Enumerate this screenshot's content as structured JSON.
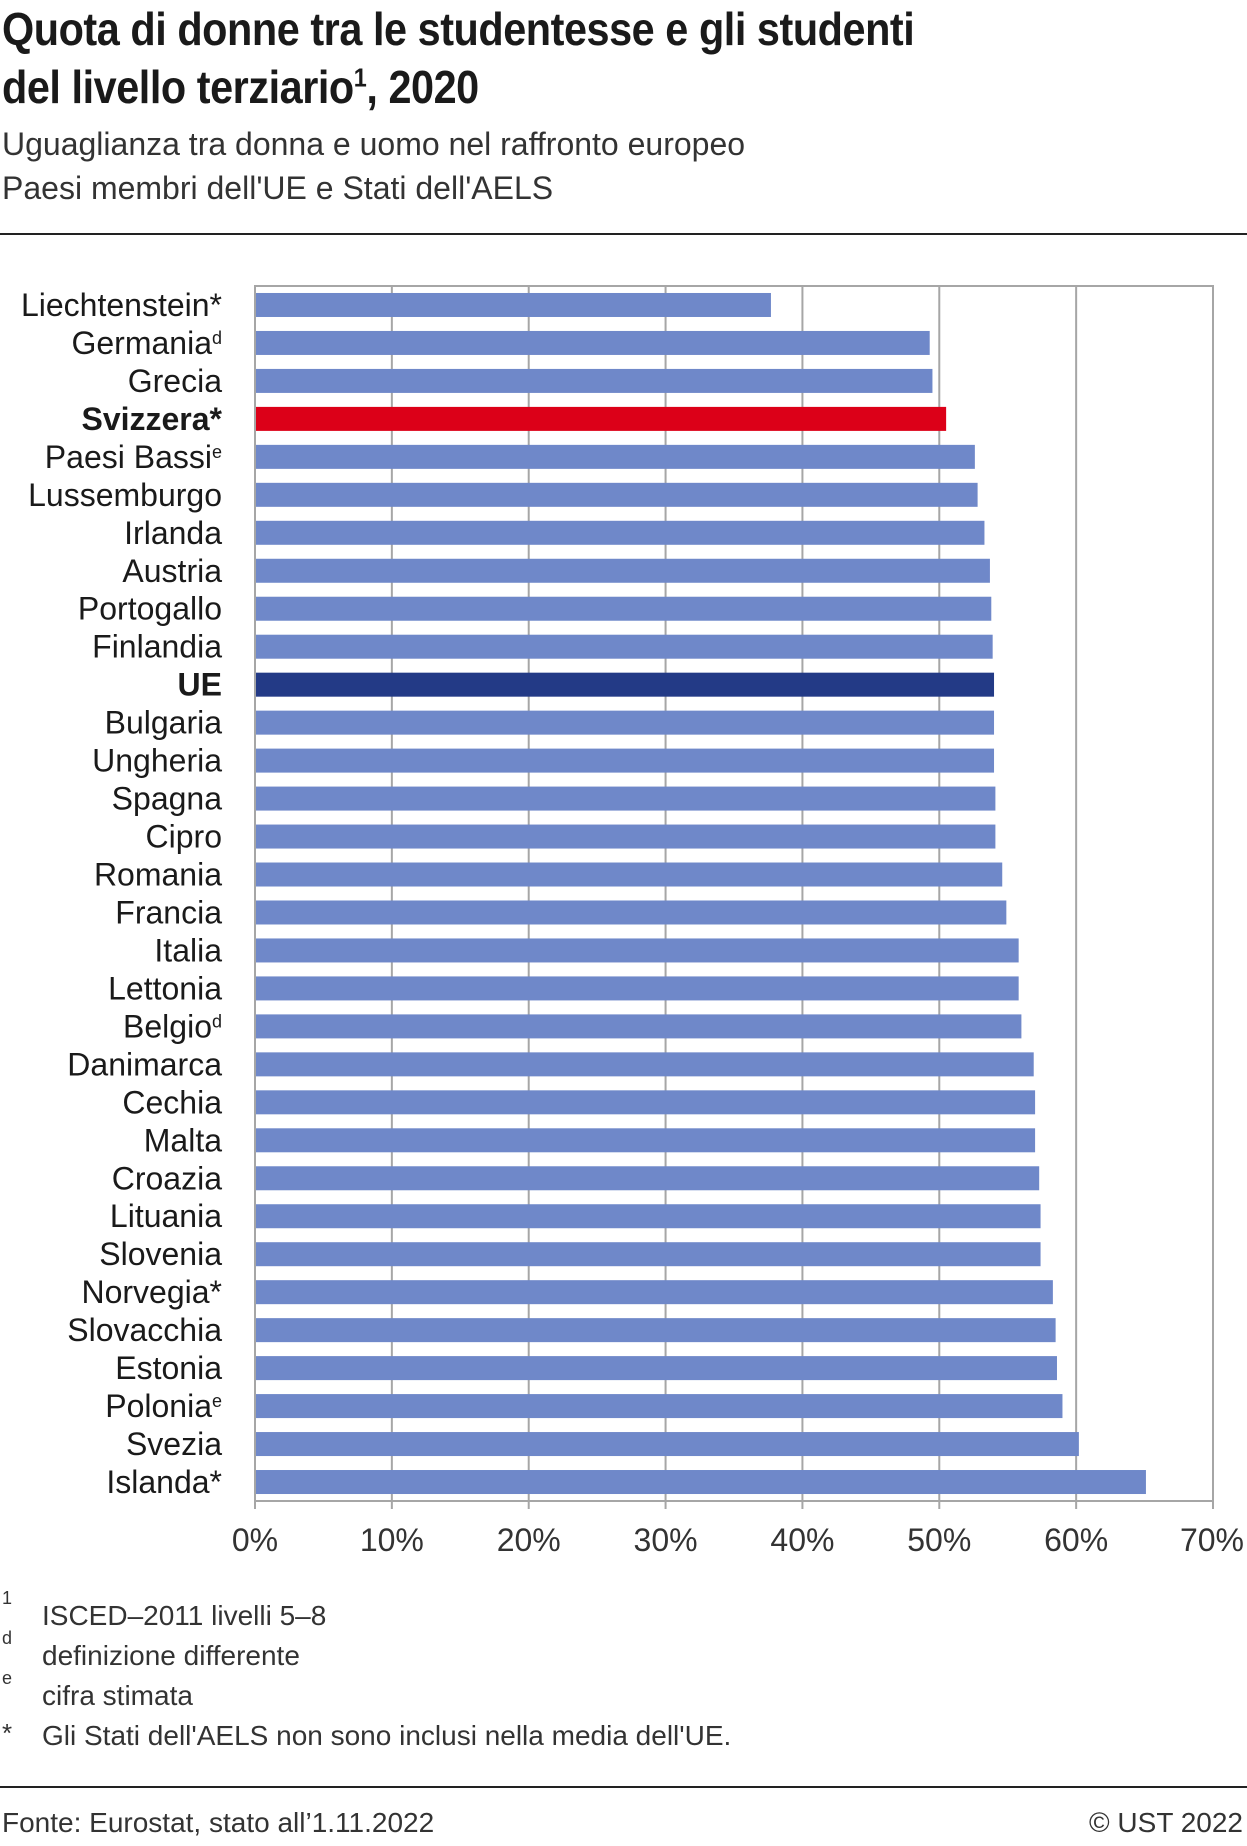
{
  "title_line1": "Quota di donne tra le studentesse e gli studenti",
  "title_line2": "del livello terziario",
  "title_sup": "1",
  "title_year": ", 2020",
  "subtitle_line1": "Uguaglianza tra donna e uomo nel raffronto europeo",
  "subtitle_line2": "Paesi membri dell'UE e Stati dell'AELS",
  "footnotes": [
    {
      "mark": "1",
      "text": "ISCED–2011 livelli 5–8"
    },
    {
      "mark": "d",
      "text": "definizione differente"
    },
    {
      "mark": "e",
      "text": "cifra stimata"
    },
    {
      "mark": "*",
      "text": "Gli Stati dell'AELS non sono inclusi nella media dell'UE."
    }
  ],
  "source": "Fonte: Eurostat, stato all’1.11.2022",
  "copyright": "© UST 2022",
  "colors": {
    "default": "#6f88c9",
    "switzerland": "#dc0018",
    "eu": "#233a86",
    "grid": "#a6a6a6"
  },
  "chart_data": {
    "type": "bar",
    "orientation": "horizontal",
    "xlim": [
      0,
      70
    ],
    "xticks": [
      "0%",
      "10%",
      "20%",
      "30%",
      "40%",
      "50%",
      "60%",
      "70%"
    ],
    "grid": true,
    "categories": [
      {
        "label": "Liechtenstein*",
        "sup": "",
        "value": 37.7
      },
      {
        "label": "Germania",
        "sup": "d",
        "value": 49.3
      },
      {
        "label": "Grecia",
        "sup": "",
        "value": 49.5
      },
      {
        "label": "Svizzera*",
        "sup": "",
        "value": 50.5,
        "highlight": "switzerland"
      },
      {
        "label": "Paesi Bassi",
        "sup": "e",
        "value": 52.6
      },
      {
        "label": "Lussemburgo",
        "sup": "",
        "value": 52.8
      },
      {
        "label": "Irlanda",
        "sup": "",
        "value": 53.3
      },
      {
        "label": "Austria",
        "sup": "",
        "value": 53.7
      },
      {
        "label": "Portogallo",
        "sup": "",
        "value": 53.8
      },
      {
        "label": "Finlandia",
        "sup": "",
        "value": 53.9
      },
      {
        "label": "UE",
        "sup": "",
        "value": 54.0,
        "highlight": "eu"
      },
      {
        "label": "Bulgaria",
        "sup": "",
        "value": 54.0
      },
      {
        "label": "Ungheria",
        "sup": "",
        "value": 54.0
      },
      {
        "label": "Spagna",
        "sup": "",
        "value": 54.1
      },
      {
        "label": "Cipro",
        "sup": "",
        "value": 54.1
      },
      {
        "label": "Romania",
        "sup": "",
        "value": 54.6
      },
      {
        "label": "Francia",
        "sup": "",
        "value": 54.9
      },
      {
        "label": "Italia",
        "sup": "",
        "value": 55.8
      },
      {
        "label": "Lettonia",
        "sup": "",
        "value": 55.8
      },
      {
        "label": "Belgio",
        "sup": "d",
        "value": 56.0
      },
      {
        "label": "Danimarca",
        "sup": "",
        "value": 56.9
      },
      {
        "label": "Cechia",
        "sup": "",
        "value": 57.0
      },
      {
        "label": "Malta",
        "sup": "",
        "value": 57.0
      },
      {
        "label": "Croazia",
        "sup": "",
        "value": 57.3
      },
      {
        "label": "Lituania",
        "sup": "",
        "value": 57.4
      },
      {
        "label": "Slovenia",
        "sup": "",
        "value": 57.4
      },
      {
        "label": "Norvegia*",
        "sup": "",
        "value": 58.3
      },
      {
        "label": "Slovacchia",
        "sup": "",
        "value": 58.5
      },
      {
        "label": "Estonia",
        "sup": "",
        "value": 58.6
      },
      {
        "label": "Polonia",
        "sup": "e",
        "value": 59.0
      },
      {
        "label": "Svezia",
        "sup": "",
        "value": 60.2
      },
      {
        "label": "Islanda*",
        "sup": "",
        "value": 65.1
      }
    ]
  }
}
